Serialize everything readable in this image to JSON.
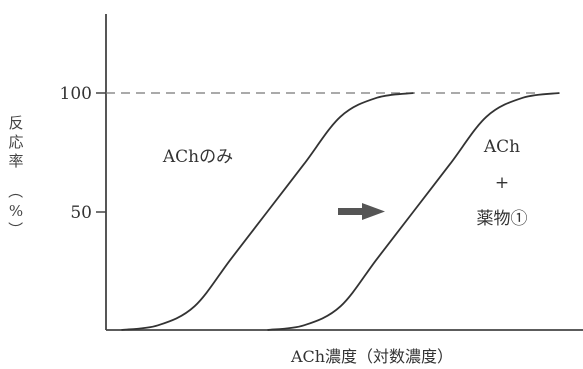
{
  "chart_data": {
    "type": "line",
    "title": "",
    "xlabel": "ACh濃度（対数濃度）",
    "ylabel": "反応率（%）",
    "ylim": [
      0,
      100
    ],
    "y_ticks": [
      "100",
      "50"
    ],
    "y_tick_values": [
      100,
      50
    ],
    "reference_line": {
      "y": 100,
      "style": "dashed"
    },
    "x_scale": "log",
    "series": [
      {
        "name": "AChのみ",
        "x": [
          1,
          2,
          3,
          4,
          5,
          6,
          7,
          8,
          9
        ],
        "y": [
          0,
          2,
          10,
          30,
          50,
          70,
          90,
          98,
          100
        ]
      },
      {
        "name": "ACh + 薬物①",
        "x": [
          5,
          6,
          7,
          8,
          9,
          10,
          11,
          12,
          13
        ],
        "y": [
          0,
          2,
          10,
          30,
          50,
          70,
          90,
          98,
          100
        ]
      }
    ],
    "annotations": {
      "ach_only": "AChのみ",
      "ach_drug_line1": "ACh",
      "ach_drug_line2": "+",
      "ach_drug_line3": "薬物①"
    },
    "shift_arrow": "right",
    "grid": false
  },
  "colors": {
    "axis": "#444444",
    "curve": "#333333",
    "dashed": "#777777",
    "arrow": "#555555"
  }
}
